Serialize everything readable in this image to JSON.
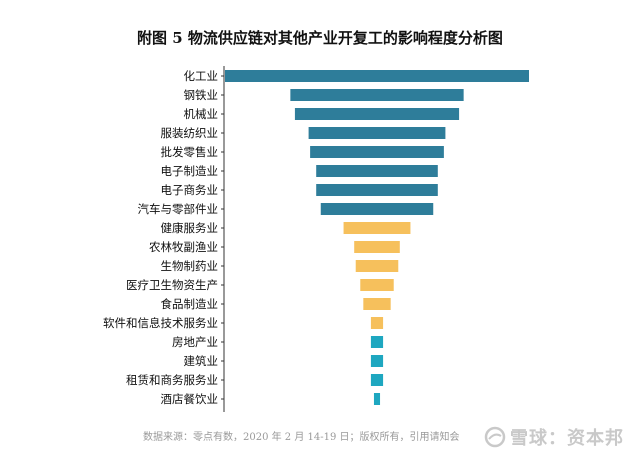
{
  "title": "附图 5   物流供应链对其他产业开复工的影响程度分析图",
  "source": "数据来源：零点有数，2020 年 2 月 14-19 日；版权所有，引用请知会",
  "watermark": "雪球：资本邦",
  "colors": {
    "high": "#2e7d9a",
    "medium": "#f6c05c",
    "low": "#1ea7c0",
    "axis": "#333333"
  },
  "chart_data": {
    "type": "bar",
    "orientation": "horizontal",
    "layout": "funnel",
    "categories": [
      "化工业",
      "钢铁业",
      "机械业",
      "服装纺织业",
      "批发零售业",
      "电子制造业",
      "电子商务业",
      "汽车与零部件业",
      "健康服务业",
      "农林牧副渔业",
      "生物制药业",
      "医疗卫生物资生产",
      "食品制造业",
      "软件和信息技术服务业",
      "房地产业",
      "建筑业",
      "租赁和商务服务业",
      "酒店餐饮业"
    ],
    "values": [
      100,
      57,
      54,
      45,
      44,
      40,
      40,
      37,
      22,
      15,
      14,
      11,
      9,
      4,
      4,
      4,
      4,
      2
    ],
    "groups": [
      "high",
      "high",
      "high",
      "high",
      "high",
      "high",
      "high",
      "high",
      "medium",
      "medium",
      "medium",
      "medium",
      "medium",
      "medium",
      "low",
      "low",
      "low",
      "low"
    ],
    "title": "",
    "xlabel": "",
    "ylabel": "",
    "xlim": [
      0,
      100
    ],
    "grid": false,
    "legend": "none"
  }
}
